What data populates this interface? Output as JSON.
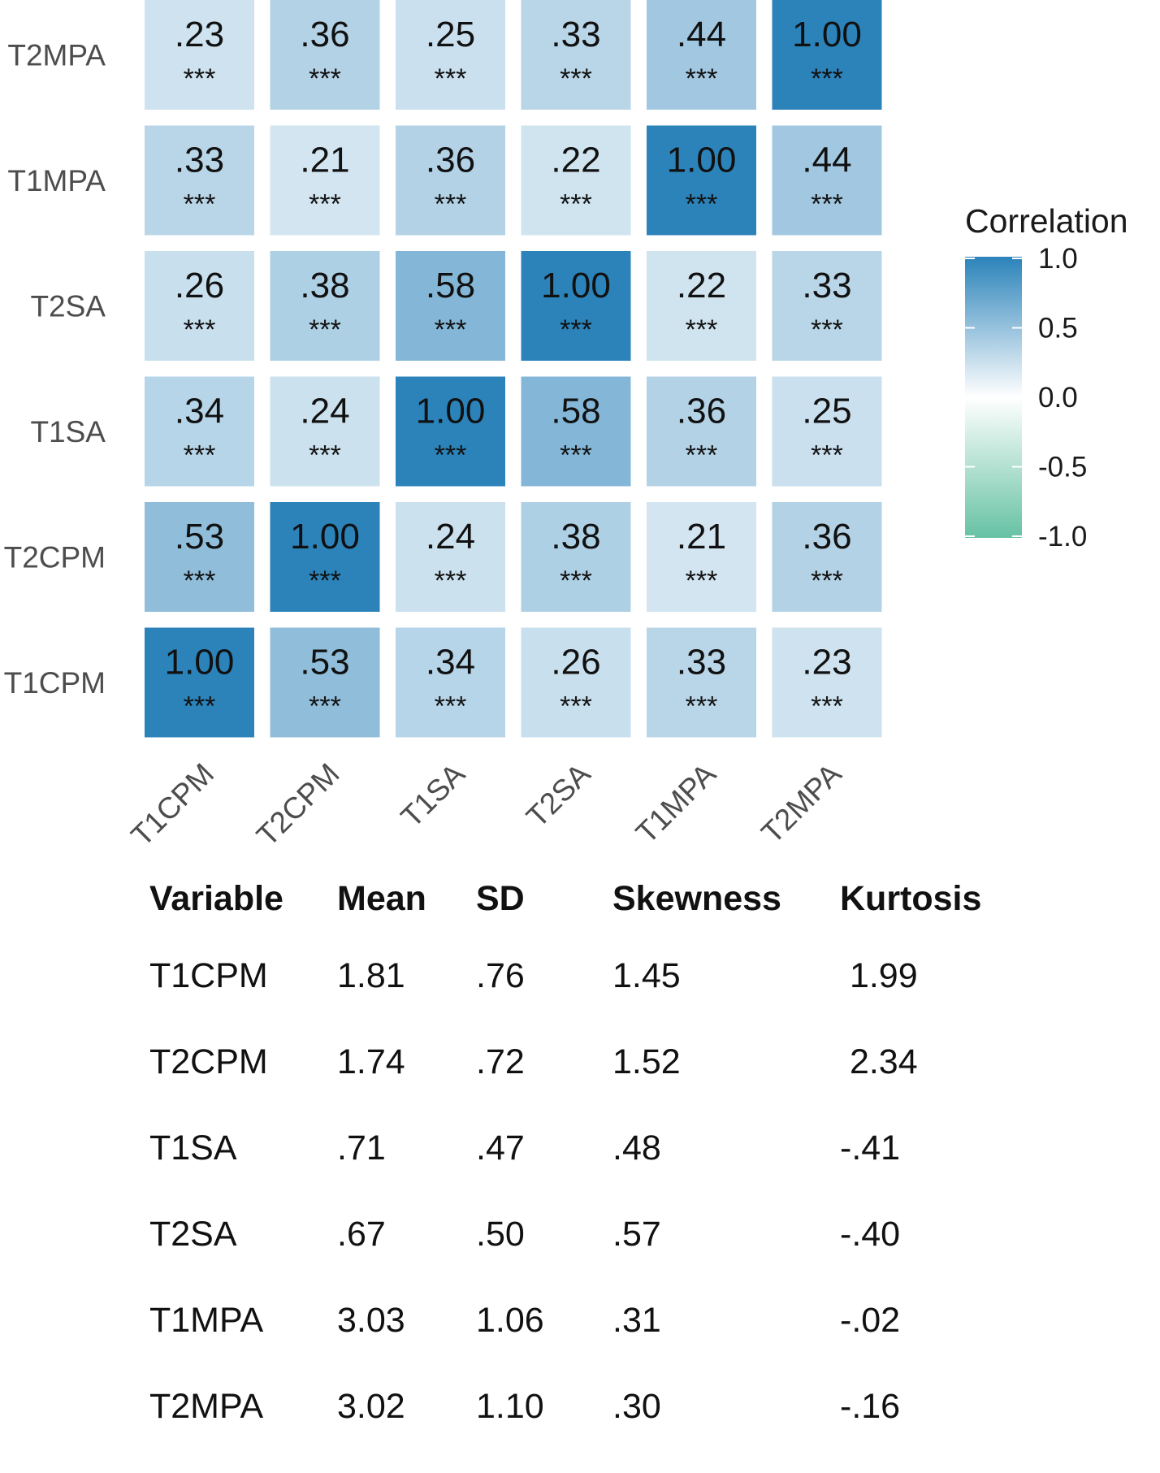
{
  "chart_data": {
    "type": "heatmap",
    "row_labels": [
      "T2MPA",
      "T1MPA",
      "T2SA",
      "T1SA",
      "T2CPM",
      "T1CPM"
    ],
    "column_labels": [
      "T1CPM",
      "T2CPM",
      "T1SA",
      "T2SA",
      "T1MPA",
      "T2MPA"
    ],
    "values": [
      [
        0.23,
        0.36,
        0.25,
        0.33,
        0.44,
        1.0
      ],
      [
        0.33,
        0.21,
        0.36,
        0.22,
        1.0,
        0.44
      ],
      [
        0.26,
        0.38,
        0.58,
        1.0,
        0.22,
        0.33
      ],
      [
        0.34,
        0.24,
        1.0,
        0.58,
        0.36,
        0.25
      ],
      [
        0.53,
        1.0,
        0.24,
        0.38,
        0.21,
        0.36
      ],
      [
        1.0,
        0.53,
        0.34,
        0.26,
        0.33,
        0.23
      ]
    ],
    "value_labels": [
      [
        ".23",
        ".36",
        ".25",
        ".33",
        ".44",
        "1.00"
      ],
      [
        ".33",
        ".21",
        ".36",
        ".22",
        "1.00",
        ".44"
      ],
      [
        ".26",
        ".38",
        ".58",
        "1.00",
        ".22",
        ".33"
      ],
      [
        ".34",
        ".24",
        "1.00",
        ".58",
        ".36",
        ".25"
      ],
      [
        ".53",
        "1.00",
        ".24",
        ".38",
        ".21",
        ".36"
      ],
      [
        "1.00",
        ".53",
        ".34",
        ".26",
        ".33",
        ".23"
      ]
    ],
    "significance": [
      [
        "***",
        "***",
        "***",
        "***",
        "***",
        "***"
      ],
      [
        "***",
        "***",
        "***",
        "***",
        "***",
        "***"
      ],
      [
        "***",
        "***",
        "***",
        "***",
        "***",
        "***"
      ],
      [
        "***",
        "***",
        "***",
        "***",
        "***",
        "***"
      ],
      [
        "***",
        "***",
        "***",
        "***",
        "***",
        "***"
      ],
      [
        "***",
        "***",
        "***",
        "***",
        "***",
        "***"
      ]
    ],
    "legend": {
      "title": "Correlation",
      "ticks": [
        1.0,
        0.5,
        0.0,
        -0.5,
        -1.0
      ],
      "tick_labels": [
        "1.0",
        "0.5",
        "0.0",
        "-0.5",
        "-1.0"
      ],
      "range": [
        -1.0,
        1.0
      ],
      "colors": {
        "low": "#66c2a4",
        "mid": "#ffffff",
        "high": "#2b83ba"
      },
      "position": "right"
    }
  },
  "stats_table": {
    "headers": [
      "Variable",
      "Mean",
      "SD",
      "Skewness",
      "Kurtosis"
    ],
    "rows": [
      [
        "T1CPM",
        "1.81",
        ".76",
        "1.45",
        " 1.99"
      ],
      [
        "T2CPM",
        "1.74",
        ".72",
        "1.52",
        " 2.34"
      ],
      [
        "T1SA",
        ".71",
        ".47",
        ".48",
        "-.41"
      ],
      [
        "T2SA",
        ".67",
        ".50",
        ".57",
        "-.40"
      ],
      [
        "T1MPA",
        "3.03",
        "1.06",
        ".31",
        "-.02"
      ],
      [
        "T2MPA",
        "3.02",
        "1.10",
        ".30",
        "-.16"
      ]
    ]
  }
}
